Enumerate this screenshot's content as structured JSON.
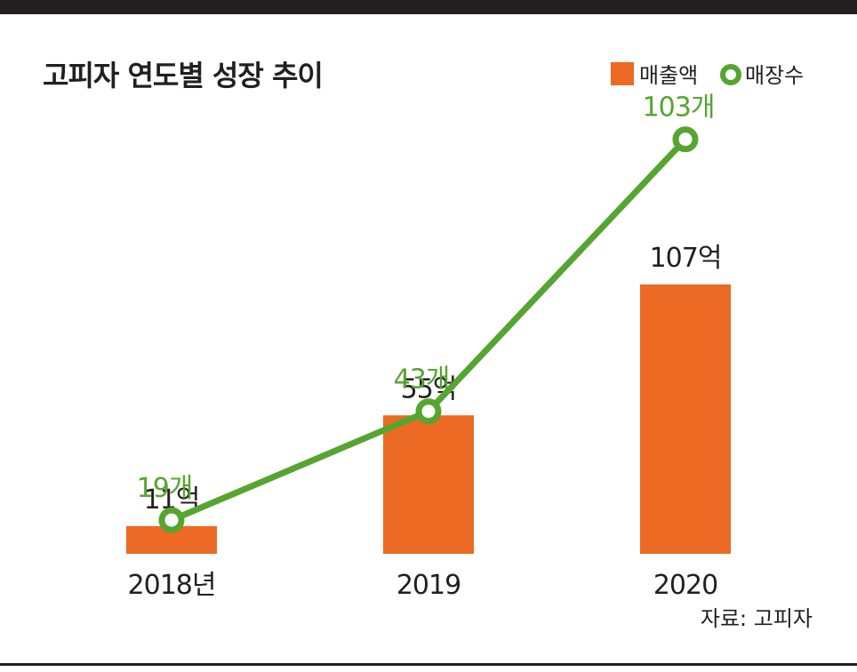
{
  "chart_data": {
    "type": "bar",
    "title": "고피자 연도별 성장 추이",
    "categories": [
      "2018년",
      "2019",
      "2020"
    ],
    "series": [
      {
        "name": "매출액",
        "kind": "bar",
        "values": [
          11,
          55,
          107
        ],
        "labels": [
          "11억",
          "55억",
          "107억"
        ],
        "color": "#ec6a23"
      },
      {
        "name": "매장수",
        "kind": "line",
        "values": [
          19,
          43,
          103
        ],
        "labels": [
          "19개",
          "43개",
          "103개"
        ],
        "color": "#55a530"
      }
    ],
    "legend": "top-right",
    "grid": false,
    "source": "자료: 고피자"
  }
}
